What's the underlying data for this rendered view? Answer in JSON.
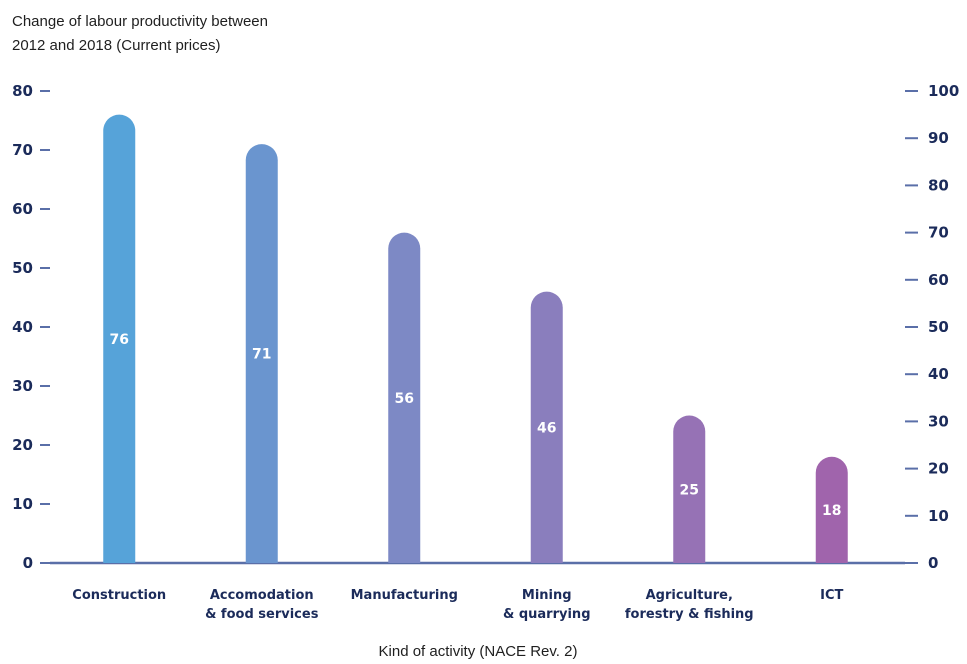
{
  "chart_data": {
    "type": "bar",
    "title": "Change of labour productivity between 2012 and 2018 (Current prices)",
    "title_lines": [
      "Change of labour productivity between",
      "2012 and 2018 (Current prices)"
    ],
    "xlabel": "Kind of activity (NACE Rev. 2)",
    "ylabel": "",
    "categories": [
      [
        "Construction"
      ],
      [
        "Accomodation",
        "& food services"
      ],
      [
        "Manufacturing"
      ],
      [
        "Mining",
        "& quarrying"
      ],
      [
        "Agriculture,",
        "forestry & fishing"
      ],
      [
        "ICT"
      ]
    ],
    "values": [
      76,
      71,
      56,
      46,
      25,
      18
    ],
    "ylim": [
      0,
      80
    ],
    "yticks": [
      0,
      10,
      20,
      30,
      40,
      50,
      60,
      70,
      80
    ],
    "y2lim": [
      0,
      100
    ],
    "y2ticks": [
      0,
      10,
      20,
      30,
      40,
      50,
      60,
      70,
      80,
      90,
      100
    ],
    "grid": false,
    "colors": [
      "#56a3d9",
      "#6a95cf",
      "#7d89c5",
      "#8a7ebd",
      "#9672b5",
      "#a064ac"
    ],
    "axis_color": "#5a6fa8",
    "tick_label_color": "#1b2b5a"
  }
}
